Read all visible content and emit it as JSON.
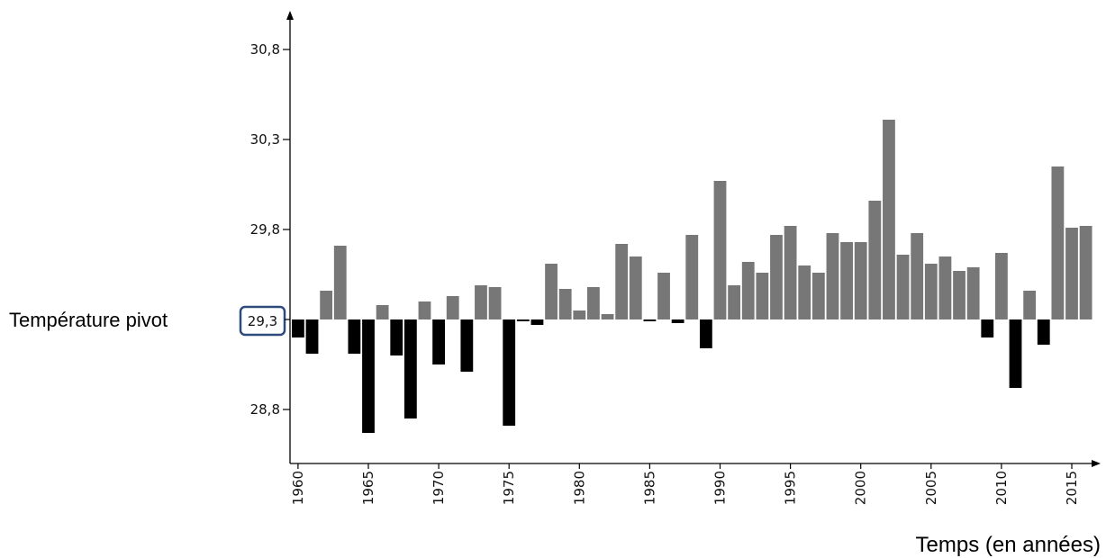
{
  "chart_data": {
    "type": "bar",
    "title": "",
    "xlabel": "Temps (en années)",
    "ylabel": "",
    "pivot_label": "Température pivot",
    "pivot_value": 29.3,
    "pivot_tick_label": "29,3",
    "ylim": [
      28.45,
      31.0
    ],
    "y_ticks": [
      {
        "value": 28.8,
        "label": "28,8"
      },
      {
        "value": 29.8,
        "label": "29,8"
      },
      {
        "value": 30.3,
        "label": "30,3"
      },
      {
        "value": 30.8,
        "label": "30,8"
      }
    ],
    "x_ticks": [
      {
        "value": 1960,
        "label": "1960"
      },
      {
        "value": 1965,
        "label": "1965"
      },
      {
        "value": 1970,
        "label": "1970"
      },
      {
        "value": 1975,
        "label": "1975"
      },
      {
        "value": 1980,
        "label": "1980"
      },
      {
        "value": 1985,
        "label": "1985"
      },
      {
        "value": 1990,
        "label": "1990"
      },
      {
        "value": 1995,
        "label": "1995"
      },
      {
        "value": 2000,
        "label": "2000"
      },
      {
        "value": 2005,
        "label": "2005"
      },
      {
        "value": 2010,
        "label": "2010"
      },
      {
        "value": 2015,
        "label": "2015"
      }
    ],
    "years": [
      1960,
      1961,
      1962,
      1963,
      1964,
      1965,
      1966,
      1967,
      1968,
      1969,
      1970,
      1971,
      1972,
      1973,
      1974,
      1975,
      1976,
      1977,
      1978,
      1979,
      1980,
      1981,
      1982,
      1983,
      1984,
      1985,
      1986,
      1987,
      1988,
      1989,
      1990,
      1991,
      1992,
      1993,
      1994,
      1995,
      1996,
      1997,
      1998,
      1999,
      2000,
      2001,
      2002,
      2003,
      2004,
      2005,
      2006,
      2007,
      2008,
      2009,
      2010,
      2011,
      2012,
      2013,
      2014,
      2015,
      2016
    ],
    "values": [
      29.2,
      29.11,
      29.46,
      29.71,
      29.11,
      28.67,
      29.38,
      29.1,
      28.75,
      29.4,
      29.05,
      29.43,
      29.01,
      29.49,
      29.48,
      28.71,
      29.29,
      29.27,
      29.61,
      29.47,
      29.35,
      29.48,
      29.33,
      29.72,
      29.65,
      29.29,
      29.56,
      29.28,
      29.77,
      29.14,
      30.07,
      29.49,
      29.62,
      29.56,
      29.77,
      29.82,
      29.6,
      29.56,
      29.78,
      29.73,
      29.73,
      29.96,
      30.41,
      29.66,
      29.78,
      29.61,
      29.65,
      29.57,
      29.59,
      29.2,
      29.67,
      28.92,
      29.46,
      29.16,
      30.15,
      29.81,
      29.82
    ],
    "colors": {
      "above": "#777777",
      "below": "#000000",
      "highlight_box": "#2e4a7d",
      "axis": "#000000"
    }
  }
}
